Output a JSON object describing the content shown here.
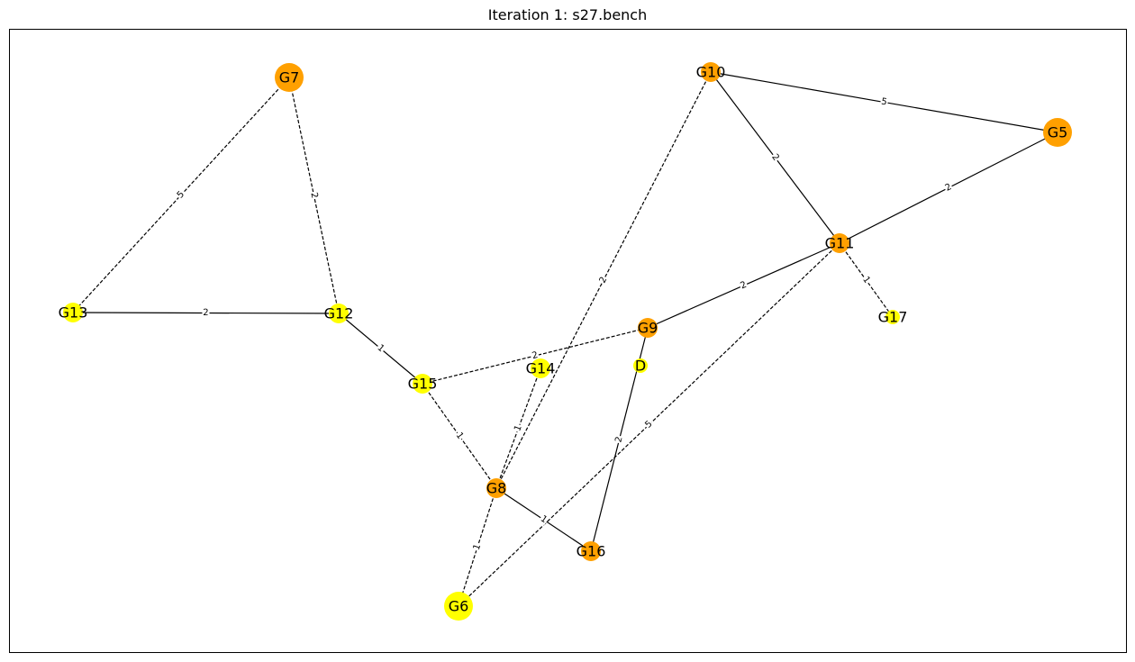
{
  "title": "Iteration 1: s27.bench",
  "colors": {
    "orange": "#ffa000",
    "yellow": "#ffff00",
    "edge": "#000000",
    "frame": "#000000"
  },
  "nodes": [
    {
      "id": "G7",
      "label": "G7",
      "color": "orange",
      "size": "large"
    },
    {
      "id": "G10",
      "label": "G10",
      "color": "orange",
      "size": "small"
    },
    {
      "id": "G5",
      "label": "G5",
      "color": "orange",
      "size": "large"
    },
    {
      "id": "G11",
      "label": "G11",
      "color": "orange",
      "size": "small"
    },
    {
      "id": "G17",
      "label": "G17",
      "color": "yellow",
      "size": "tiny"
    },
    {
      "id": "G13",
      "label": "G13",
      "color": "yellow",
      "size": "small"
    },
    {
      "id": "G12",
      "label": "G12",
      "color": "yellow",
      "size": "small"
    },
    {
      "id": "G9",
      "label": "G9",
      "color": "orange",
      "size": "small"
    },
    {
      "id": "D",
      "label": "D",
      "color": "yellow",
      "size": "tiny"
    },
    {
      "id": "G14",
      "label": "G14",
      "color": "yellow",
      "size": "small"
    },
    {
      "id": "G15",
      "label": "G15",
      "color": "yellow",
      "size": "small"
    },
    {
      "id": "G8",
      "label": "G8",
      "color": "orange",
      "size": "small"
    },
    {
      "id": "G16",
      "label": "G16",
      "color": "orange",
      "size": "small"
    },
    {
      "id": "G6",
      "label": "G6",
      "color": "yellow",
      "size": "large"
    }
  ],
  "edges": [
    {
      "source": "G7",
      "target": "G13",
      "weight": "5",
      "style": "dashed"
    },
    {
      "source": "G7",
      "target": "G12",
      "weight": "2",
      "style": "dashed"
    },
    {
      "source": "G13",
      "target": "G12",
      "weight": "2",
      "style": "solid"
    },
    {
      "source": "G12",
      "target": "G15",
      "weight": "1",
      "style": "solid"
    },
    {
      "source": "G10",
      "target": "G5",
      "weight": "5",
      "style": "solid"
    },
    {
      "source": "G10",
      "target": "G11",
      "weight": "2",
      "style": "solid"
    },
    {
      "source": "G10",
      "target": "G8",
      "weight": "2",
      "style": "dashed"
    },
    {
      "source": "G5",
      "target": "G11",
      "weight": "2",
      "style": "solid"
    },
    {
      "source": "G11",
      "target": "G17",
      "weight": "1",
      "style": "dashed"
    },
    {
      "source": "G11",
      "target": "G9",
      "weight": "2",
      "style": "solid"
    },
    {
      "source": "G11",
      "target": "G6",
      "weight": "5",
      "style": "dashed"
    },
    {
      "source": "G15",
      "target": "G9",
      "weight": "2",
      "style": "dashed"
    },
    {
      "source": "G15",
      "target": "G8",
      "weight": "1",
      "style": "dashed"
    },
    {
      "source": "G8",
      "target": "G14",
      "weight": "1",
      "style": "dashed"
    },
    {
      "source": "G8",
      "target": "G16",
      "weight": "1",
      "style": "solid"
    },
    {
      "source": "G8",
      "target": "G6",
      "weight": "1",
      "style": "dashed"
    },
    {
      "source": "G9",
      "target": "G16",
      "weight": "2",
      "style": "solid"
    }
  ]
}
